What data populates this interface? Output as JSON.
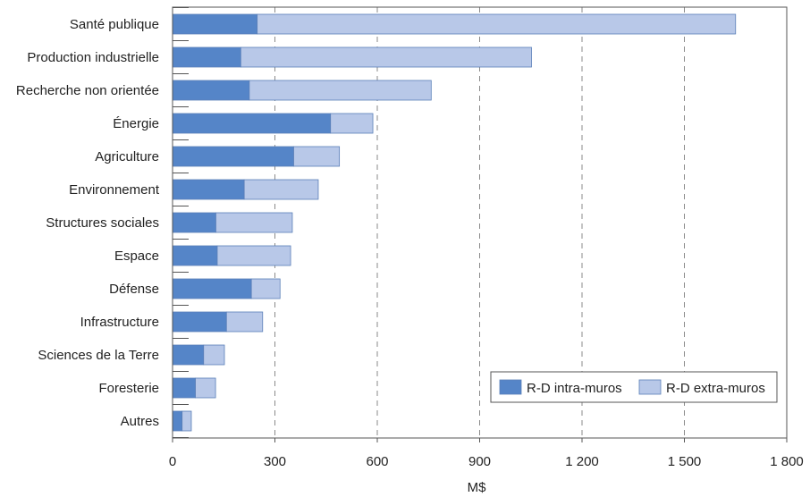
{
  "chart_data": {
    "type": "bar",
    "orientation": "horizontal",
    "stacked": true,
    "categories": [
      "Santé publique",
      "Production industrielle",
      "Recherche non orientée",
      "Énergie",
      "Agriculture",
      "Environnement",
      "Structures sociales",
      "Espace",
      "Défense",
      "Infrastructure",
      "Sciences de la Terre",
      "Foresterie",
      "Autres"
    ],
    "series": [
      {
        "name": "R-D intra-muros",
        "color": "#5585c8",
        "values": [
          248,
          200,
          225,
          463,
          355,
          210,
          127,
          131,
          231,
          158,
          91,
          67,
          28
        ]
      },
      {
        "name": "R-D extra-muros",
        "color": "#b8c8e8",
        "values": [
          1402,
          852,
          533,
          124,
          134,
          217,
          224,
          215,
          84,
          106,
          61,
          59,
          27
        ]
      }
    ],
    "xlabel": "M$",
    "ylabel": "",
    "xlim": [
      0,
      1800
    ],
    "xticks": [
      0,
      300,
      600,
      900,
      1200,
      1500,
      1800
    ],
    "xtick_labels": [
      "0",
      "300",
      "600",
      "900",
      "1 200",
      "1 500",
      "1 800"
    ],
    "grid": "vertical dashed",
    "legend_position": "bottom-right"
  }
}
